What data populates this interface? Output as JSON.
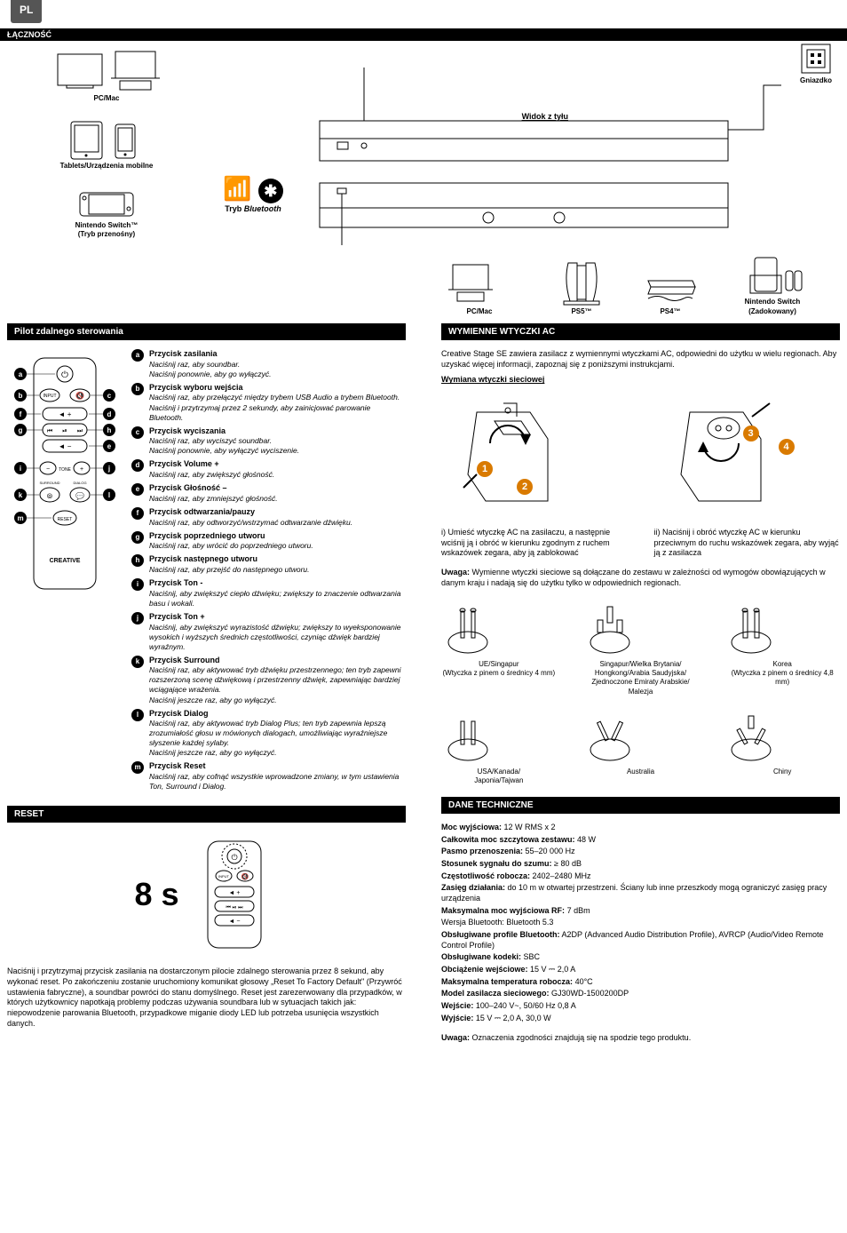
{
  "lang_tab": "PL",
  "section_connectivity": "ŁĄCZNOŚĆ",
  "devices": {
    "pcmac": "PC/Mac",
    "tablets": "Tablets/Urządzenia mobilne",
    "switch_portable": "Nintendo Switch™\n(Tryb przenośny)",
    "bt_mode": "Tryb Bluetooth",
    "rear_view": "Widok z tyłu",
    "outlet": "Gniazdko",
    "row": [
      {
        "label": "PC/Mac"
      },
      {
        "label": "PS5™"
      },
      {
        "label": "PS4™"
      },
      {
        "label": "Nintendo Switch\n(Zadokowany)"
      }
    ]
  },
  "section_remote": "Pilot zdalnego sterowania",
  "remote_brand": "CREATIVE",
  "remote_buttons": {
    "input": "INPUT",
    "tone": "TONE",
    "surround": "SURROUND",
    "dialog": "DIALOG",
    "reset": "RESET"
  },
  "remote_items": [
    {
      "k": "a",
      "title": "Przycisk zasilania",
      "desc": "Naciśnij raz, aby soundbar.\nNaciśnij ponownie, aby go wyłączyć."
    },
    {
      "k": "b",
      "title": "Przycisk wyboru wejścia",
      "desc": "Naciśnij raz, aby przełączyć między trybem USB Audio a trybem Bluetooth.\nNaciśnij i przytrzymaj przez 2 sekundy, aby zainicjować parowanie Bluetooth."
    },
    {
      "k": "c",
      "title": "Przycisk wyciszania",
      "desc": "Naciśnij raz, aby wyciszyć soundbar.\nNaciśnij ponownie, aby wyłączyć wyciszenie."
    },
    {
      "k": "d",
      "title": "Przycisk Volume +",
      "desc": "Naciśnij raz, aby zwiększyć głośność."
    },
    {
      "k": "e",
      "title": "Przycisk Głośność –",
      "desc": "Naciśnij raz, aby zmniejszyć głośność."
    },
    {
      "k": "f",
      "title": "Przycisk odtwarzania/pauzy",
      "desc": "Naciśnij raz, aby odtworzyć/wstrzymać odtwarzanie dźwięku."
    },
    {
      "k": "g",
      "title": "Przycisk poprzedniego utworu",
      "desc": "Naciśnij raz, aby wrócić do poprzedniego utworu."
    },
    {
      "k": "h",
      "title": "Przycisk następnego utworu",
      "desc": "Naciśnij raz, aby przejść do następnego utworu."
    },
    {
      "k": "i",
      "title": "Przycisk Ton -",
      "desc": "Naciśnij, aby zwiększyć ciepło dźwięku; zwiększy to znaczenie odtwarzania basu i wokali."
    },
    {
      "k": "j",
      "title": "Przycisk Ton +",
      "desc": "Naciśnij, aby zwiększyć wyrazistość dźwięku; zwiększy to wyeksponowanie wysokich i wyższych średnich częstotliwości, czyniąc dźwięk bardziej wyraźnym."
    },
    {
      "k": "k",
      "title": "Przycisk Surround",
      "desc": "Naciśnij raz, aby aktywować tryb dźwięku przestrzennego; ten tryb zapewni rozszerzoną scenę dźwiękową i przestrzenny dźwięk, zapewniając bardziej wciągające wrażenia.\nNaciśnij jeszcze raz, aby go wyłączyć."
    },
    {
      "k": "l",
      "title": "Przycisk Dialog",
      "desc": "Naciśnij raz, aby aktywować tryb Dialog Plus; ten tryb zapewnia lepszą zrozumiałość głosu w mówionych dialogach, umożliwiając wyraźniejsze słyszenie każdej sylaby.\nNaciśnij jeszcze raz, aby go wyłączyć."
    },
    {
      "k": "m",
      "title": "Przycisk Reset",
      "desc": "Naciśnij raz, aby cofnąć wszystkie wprowadzone zmiany, w tym ustawienia Ton, Surround i Dialog."
    }
  ],
  "section_reset": "RESET",
  "reset_duration": "8 s",
  "reset_text": "Naciśnij i przytrzymaj przycisk zasilania na dostarczonym pilocie zdalnego sterowania przez 8 sekund, aby wykonać reset. Po zakończeniu zostanie uruchomiony komunikat głosowy „Reset To Factory Default\" (Przywróć ustawienia fabryczne), a soundbar powróci do stanu domyślnego. Reset jest zarezerwowany dla przypadków, w których użytkownicy napotkają problemy podczas używania soundbara lub w sytuacjach takich jak: niepowodzenie parowania Bluetooth, przypadkowe miganie diody LED lub potrzeba usunięcia wszystkich danych.",
  "section_plugs": "WYMIENNE WTYCZKI AC",
  "plug_intro": "Creative Stage SE zawiera zasilacz z wymiennymi wtyczkami AC, odpowiedni do użytku w wielu regionach. Aby uzyskać więcej informacji, zapoznaj się z poniższymi instrukcjami.",
  "plug_heading": "Wymiana wtyczki sieciowej",
  "plug_step1": "i) Umieść wtyczkę AC na zasilaczu, a następnie wciśnij ją i obróć w kierunku zgodnym z ruchem wskazówek zegara, aby ją zablokować",
  "plug_step2": "ii) Naciśnij i obróć wtyczkę AC w kierunku przeciwnym do ruchu wskazówek zegara, aby wyjąć ją z zasilacza",
  "plug_note_label": "Uwaga:",
  "plug_note": "Wymienne wtyczki sieciowe są dołączane do zestawu w zależności od wymogów obowiązujących w danym kraju i nadają się do użytku tylko w odpowiednich regionach.",
  "plug_regions_row1": [
    {
      "label": "UE/Singapur\n(Wtyczka z pinem o średnicy 4 mm)"
    },
    {
      "label": "Singapur/Wielka Brytania/\nHongkong/Arabia Saudyjska/\nZjednoczone Emiraty Arabskie/\nMalezja"
    },
    {
      "label": "Korea\n(Wtyczka z pinem o średnicy 4,8 mm)"
    }
  ],
  "plug_regions_row2": [
    {
      "label": "USA/Kanada/\nJaponia/Tajwan"
    },
    {
      "label": "Australia"
    },
    {
      "label": "Chiny"
    }
  ],
  "section_specs": "DANE TECHNICZNE",
  "specs": [
    {
      "label": "Moc wyjściowa:",
      "value": " 12 W RMS x 2"
    },
    {
      "label": "Całkowita moc szczytowa zestawu:",
      "value": " 48 W"
    },
    {
      "label": "Pasmo przenoszenia:",
      "value": " 55–20 000 Hz"
    },
    {
      "label": "Stosunek sygnału do szumu:",
      "value": " ≥ 80 dB"
    },
    {
      "label": "Częstotliwość robocza:",
      "value": " 2402–2480 MHz"
    },
    {
      "label": "Zasięg działania:",
      "value": " do 10 m w otwartej przestrzeni. Ściany lub inne przeszkody mogą ograniczyć zasięg pracy urządzenia"
    },
    {
      "label": "Maksymalna moc wyjściowa RF:",
      "value": " 7 dBm"
    },
    {
      "label": "",
      "value": "Wersja Bluetooth: Bluetooth 5.3",
      "italic_prefix": true
    },
    {
      "label": "Obsługiwane profile Bluetooth:",
      "value": " A2DP (Advanced Audio Distribution Profile), AVRCP (Audio/Video Remote Control Profile)"
    },
    {
      "label": "Obsługiwane kodeki:",
      "value": " SBC"
    },
    {
      "label": "Obciążenie wejściowe:",
      "value": " 15 V ⎓ 2,0 A"
    },
    {
      "label": "Maksymalna temperatura robocza:",
      "value": " 40°C"
    },
    {
      "label": "Model zasilacza sieciowego:",
      "value": " GJ30WD-1500200DP"
    },
    {
      "label": "Wejście:",
      "value": " 100–240 V~, 50/60 Hz 0,8 A"
    },
    {
      "label": "Wyjście:",
      "value": "  15 V ⎓ 2,0 A, 30,0 W"
    }
  ],
  "bottom_note_label": "Uwaga:",
  "bottom_note": "Oznaczenia zgodności znajdują się na spodzie tego produktu.",
  "colors": {
    "orange": "#d97a00",
    "black": "#000000"
  }
}
